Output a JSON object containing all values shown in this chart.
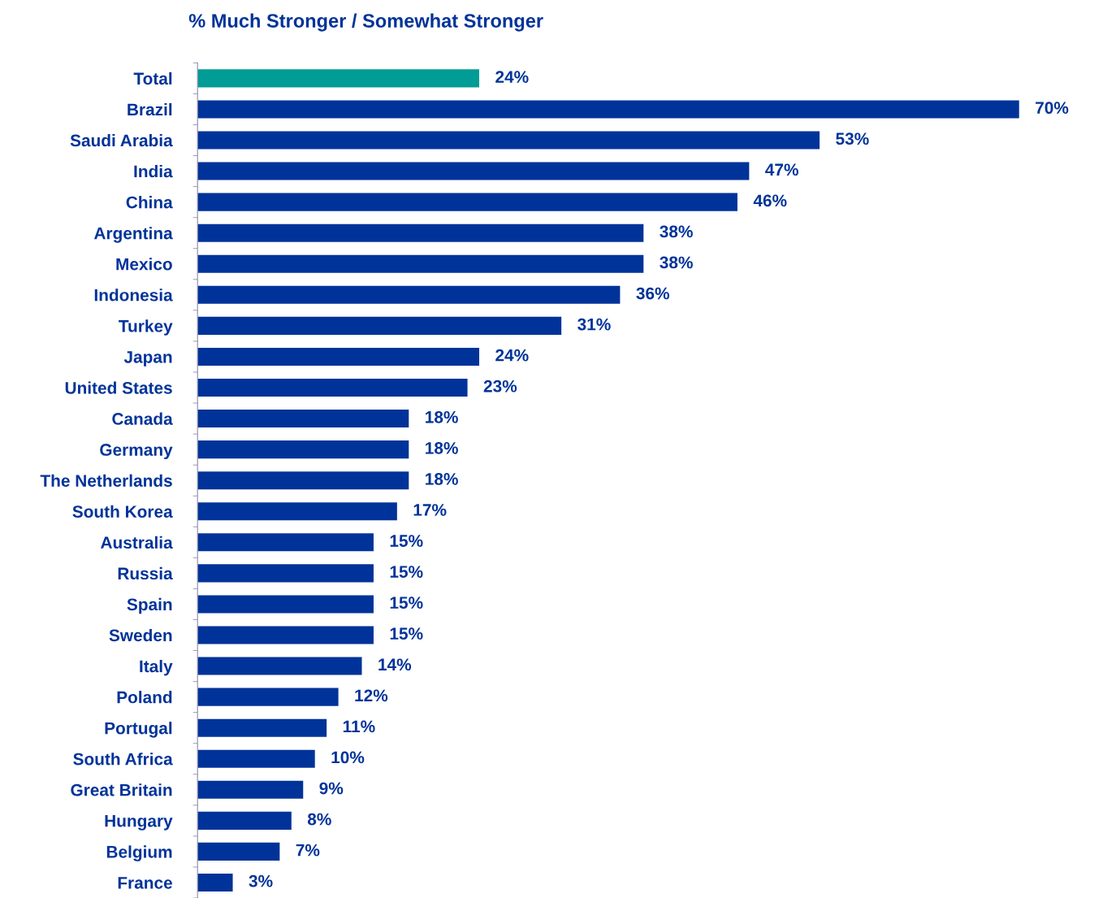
{
  "chart_data": {
    "type": "bar",
    "orientation": "horizontal",
    "title": "% Much Stronger / Somewhat Stronger",
    "categories": [
      "Total",
      "Brazil",
      "Saudi Arabia",
      "India",
      "China",
      "Argentina",
      "Mexico",
      "Indonesia",
      "Turkey",
      "Japan",
      "United States",
      "Canada",
      "Germany",
      "The Netherlands",
      "South Korea",
      "Australia",
      "Russia",
      "Spain",
      "Sweden",
      "Italy",
      "Poland",
      "Portugal",
      "South Africa",
      "Great Britain",
      "Hungary",
      "Belgium",
      "France"
    ],
    "values": [
      24,
      70,
      53,
      47,
      46,
      38,
      38,
      36,
      31,
      24,
      23,
      18,
      18,
      18,
      17,
      15,
      15,
      15,
      15,
      14,
      12,
      11,
      10,
      9,
      8,
      7,
      3
    ],
    "value_labels": [
      "24%",
      "70%",
      "53%",
      "47%",
      "46%",
      "38%",
      "38%",
      "36%",
      "31%",
      "24%",
      "23%",
      "18%",
      "18%",
      "18%",
      "17%",
      "15%",
      "15%",
      "15%",
      "15%",
      "14%",
      "12%",
      "11%",
      "10%",
      "9%",
      "8%",
      "7%",
      "3%"
    ],
    "colors": [
      "#009c95",
      "#003399",
      "#003399",
      "#003399",
      "#003399",
      "#003399",
      "#003399",
      "#003399",
      "#003399",
      "#003399",
      "#003399",
      "#003399",
      "#003399",
      "#003399",
      "#003399",
      "#003399",
      "#003399",
      "#003399",
      "#003399",
      "#003399",
      "#003399",
      "#003399",
      "#003399",
      "#003399",
      "#003399",
      "#003399",
      "#003399"
    ],
    "tick_labels": "y",
    "grid": false,
    "legend": false
  }
}
